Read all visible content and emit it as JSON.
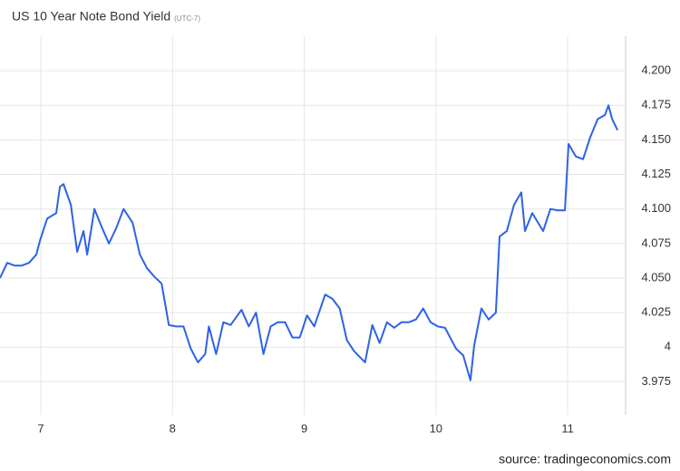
{
  "chart_data": {
    "type": "line",
    "title": "US 10 Year Note Bond Yield",
    "subtitle": "(UTC-7)",
    "source": "source: tradingeconomics.com",
    "x": [
      6.69,
      6.745,
      6.8,
      6.855,
      6.91,
      6.966,
      6.993,
      7.048,
      7.117,
      7.145,
      7.172,
      7.228,
      7.276,
      7.324,
      7.352,
      7.407,
      7.462,
      7.517,
      7.572,
      7.628,
      7.697,
      7.752,
      7.807,
      7.862,
      7.917,
      7.972,
      8.028,
      8.083,
      8.138,
      8.193,
      8.248,
      8.276,
      8.331,
      8.386,
      8.441,
      8.524,
      8.579,
      8.634,
      8.69,
      8.745,
      8.8,
      8.855,
      8.91,
      8.966,
      9.021,
      9.076,
      9.159,
      9.214,
      9.269,
      9.324,
      9.379,
      9.462,
      9.517,
      9.572,
      9.628,
      9.683,
      9.738,
      9.793,
      9.848,
      9.903,
      9.959,
      10.014,
      10.069,
      10.152,
      10.207,
      10.262,
      10.29,
      10.345,
      10.4,
      10.455,
      10.483,
      10.538,
      10.593,
      10.648,
      10.676,
      10.731,
      10.814,
      10.869,
      10.924,
      10.979,
      11.007,
      11.062,
      11.117,
      11.172,
      11.228,
      11.283,
      11.31,
      11.338,
      11.379
    ],
    "series": [
      {
        "name": "US 10 Year Note Bond Yield",
        "color": "#2d62e8",
        "values": [
          4.05,
          4.061,
          4.059,
          4.059,
          4.061,
          4.067,
          4.077,
          4.093,
          4.097,
          4.116,
          4.118,
          4.103,
          4.069,
          4.084,
          4.067,
          4.1,
          4.087,
          4.075,
          4.086,
          4.1,
          4.09,
          4.067,
          4.057,
          4.051,
          4.046,
          4.016,
          4.015,
          4.015,
          3.999,
          3.989,
          3.995,
          4.015,
          3.995,
          4.018,
          4.016,
          4.027,
          4.015,
          4.025,
          3.995,
          4.015,
          4.018,
          4.018,
          4.007,
          4.007,
          4.023,
          4.015,
          4.038,
          4.035,
          4.028,
          4.005,
          3.997,
          3.989,
          4.016,
          4.003,
          4.018,
          4.014,
          4.018,
          4.018,
          4.02,
          4.028,
          4.018,
          4.015,
          4.014,
          3.999,
          3.994,
          3.976,
          4.001,
          4.028,
          4.02,
          4.025,
          4.08,
          4.084,
          4.103,
          4.112,
          4.084,
          4.097,
          4.084,
          4.1,
          4.099,
          4.099,
          4.147,
          4.138,
          4.136,
          4.152,
          4.165,
          4.168,
          4.175,
          4.165,
          4.157
        ]
      }
    ],
    "xlim": [
      6.69,
      11.44
    ],
    "xticks": [
      7,
      8,
      9,
      10,
      11
    ],
    "ylim": [
      3.951,
      4.225
    ],
    "yticks": [
      3.975,
      4,
      4.025,
      {
        "value": 4.05,
        "label": "4.050"
      },
      4.075,
      {
        "value": 4.1,
        "label": "4.100"
      },
      4.125,
      {
        "value": 4.15,
        "label": "4.150"
      },
      4.175,
      {
        "value": 4.2,
        "label": "4.200"
      }
    ],
    "grid": true
  }
}
